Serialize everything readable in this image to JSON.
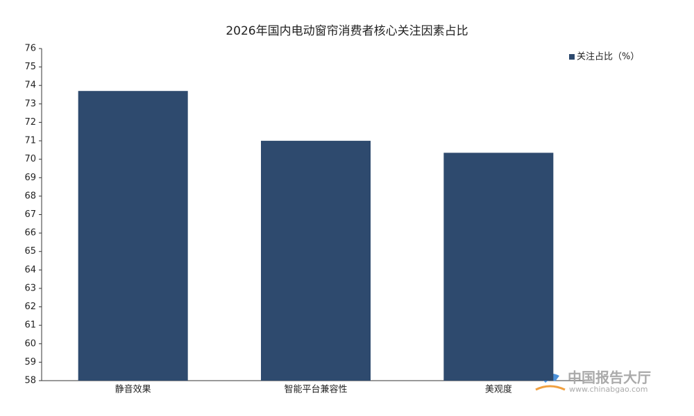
{
  "chart_data": {
    "type": "bar",
    "title": "2026年国内电动窗帘消费者核心关注因素占比",
    "categories": [
      "静音效果",
      "智能平台兼容性",
      "美观度"
    ],
    "series": [
      {
        "name": "关注占比（%）",
        "color": "#2e4a6e",
        "values": [
          73.7,
          71.0,
          70.35
        ]
      }
    ],
    "ylim": [
      58,
      76
    ],
    "yticks": [
      58,
      59,
      60,
      61,
      62,
      63,
      64,
      65,
      66,
      67,
      68,
      69,
      70,
      71,
      72,
      73,
      74,
      75,
      76
    ],
    "grid": false,
    "legend": "top-right"
  },
  "watermark": {
    "name": "中国报告大厅",
    "url": "www.chinabgao.com"
  }
}
